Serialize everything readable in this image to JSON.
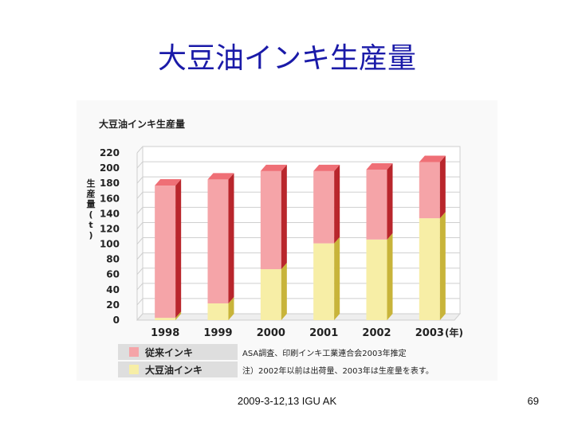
{
  "slide": {
    "title": "大豆油インキ生産量",
    "footer": "2009-3-12,13 IGU AK",
    "page_number": "69"
  },
  "colors": {
    "conventional_front": "#f5a4a8",
    "conventional_top": "#ef6f76",
    "conventional_side": "#b9262c",
    "soy_front": "#f7eea6",
    "soy_side": "#c8b43a",
    "grid": "#cfcfcf",
    "text": "#222222"
  },
  "chart_data": {
    "type": "bar",
    "stacked": true,
    "title": "大豆油インキ生産量",
    "ylabel": "生産量(t)",
    "xunit": "(年)",
    "categories": [
      "1998",
      "1999",
      "2000",
      "2001",
      "2002",
      "2003"
    ],
    "ylim": [
      0,
      220
    ],
    "yticks": [
      0,
      20,
      40,
      60,
      80,
      100,
      120,
      140,
      160,
      180,
      200,
      220
    ],
    "series": [
      {
        "name": "大豆油インキ",
        "values": [
          3,
          22,
          67,
          101,
          106,
          134
        ]
      },
      {
        "name": "従来インキ",
        "values": [
          174,
          163,
          129,
          95,
          92,
          74
        ]
      }
    ],
    "legend": [
      {
        "label": "従来インキ",
        "note": "ASA調査、印刷インキ工業連合会2003年推定"
      },
      {
        "label": "大豆油インキ",
        "note": "注）2002年以前は出荷量、2003年は生産量を表す。"
      }
    ],
    "legend_position": "bottom",
    "grid": true
  }
}
